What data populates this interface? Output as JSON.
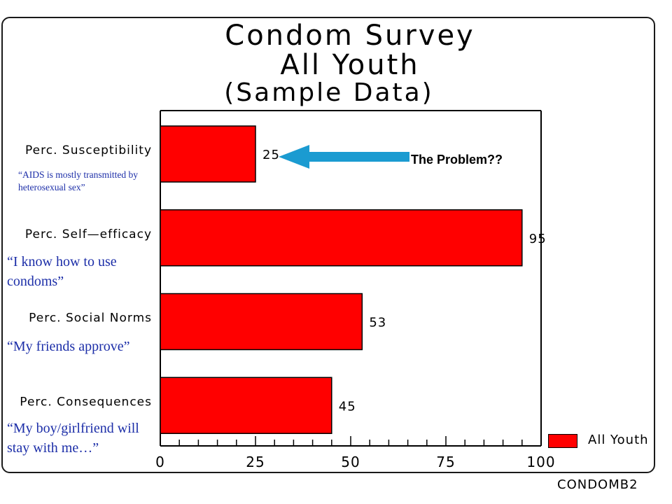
{
  "title": {
    "line1": "Condom Survey",
    "line2": "All Youth",
    "line3": "(Sample Data)"
  },
  "annotation": {
    "text": "The Problem??",
    "arrow_color": "#1b9bd1"
  },
  "quotes": [
    {
      "text": "“AIDS is mostly transmitted by heterosexual sex”"
    },
    {
      "text": "“I know how to use condoms”"
    },
    {
      "text": "“My friends approve”"
    },
    {
      "text": "“My boy/girlfriend will stay with me…”"
    }
  ],
  "legend": {
    "label": "All Youth",
    "color": "#ff0000"
  },
  "footer_code": "CONDOMB2",
  "chart_data": {
    "type": "bar",
    "orientation": "horizontal",
    "categories": [
      "Perc. Susceptibility",
      "Perc. Self—efficacy",
      "Perc. Social Norms",
      "Perc. Consequences"
    ],
    "series": [
      {
        "name": "All Youth",
        "values": [
          25,
          95,
          53,
          45
        ],
        "color": "#ff0000"
      }
    ],
    "xlim": [
      0,
      100
    ],
    "xticks": [
      0,
      25,
      50,
      75,
      100
    ],
    "minor_tick_step": 5,
    "legend_position": "bottom-right",
    "grid": false
  }
}
